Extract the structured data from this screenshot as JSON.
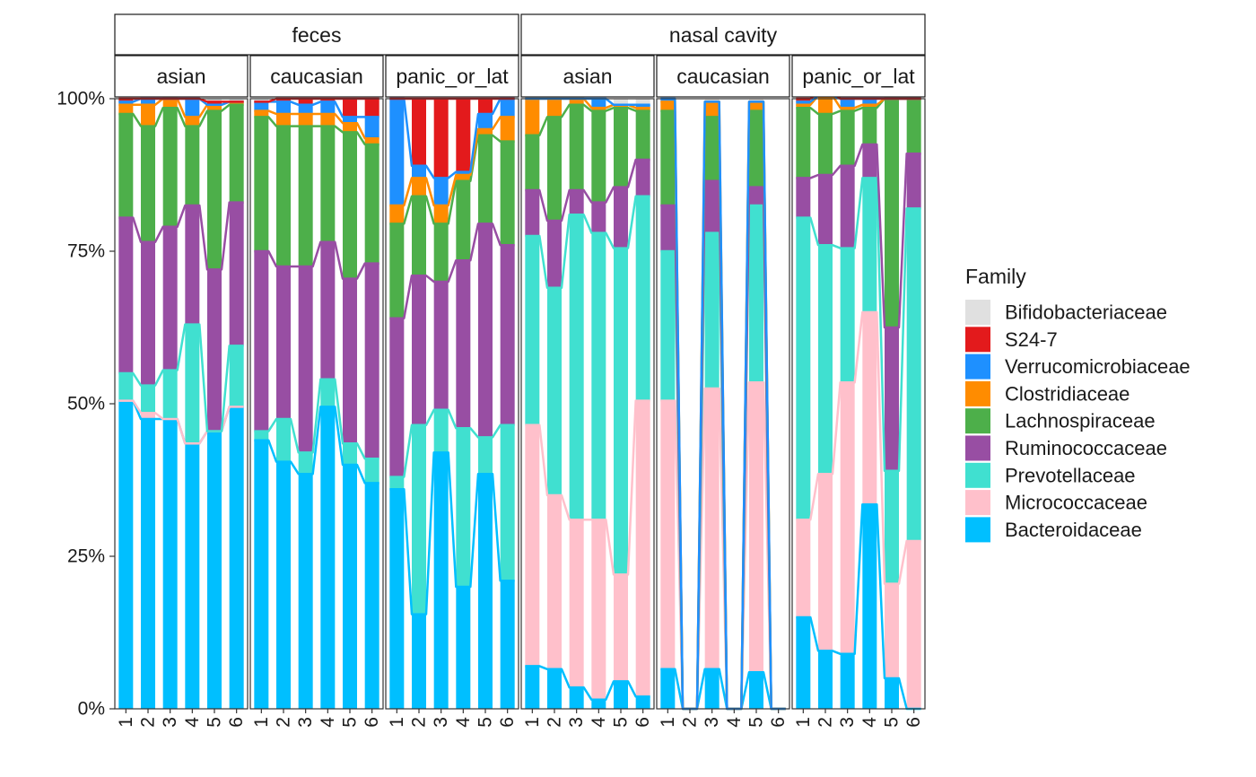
{
  "chart_data": {
    "type": "bar",
    "stacked": true,
    "percent": true,
    "facet_rows": [
      "feces",
      "nasal cavity"
    ],
    "facet_cols": [
      "asian",
      "caucasian",
      "panic_or_lat"
    ],
    "categories": [
      "1",
      "2",
      "3",
      "4",
      "5",
      "6"
    ],
    "y_ticks": [
      "0%",
      "25%",
      "50%",
      "75%",
      "100%"
    ],
    "ylim": [
      0,
      1
    ],
    "grid": false,
    "xlabel": "",
    "ylabel": "",
    "legend": {
      "title": "Family",
      "position": "right",
      "entries": [
        {
          "name": "Bifidobacteriaceae",
          "color": "#e0e0e0"
        },
        {
          "name": "S24-7",
          "color": "#e31a1c"
        },
        {
          "name": "Verrucomicrobiaceae",
          "color": "#1e90ff"
        },
        {
          "name": "Clostridiaceae",
          "color": "#ff8c00"
        },
        {
          "name": "Lachnospiraceae",
          "color": "#4daf4a"
        },
        {
          "name": "Ruminococcaceae",
          "color": "#984ea3"
        },
        {
          "name": "Prevotellaceae",
          "color": "#40e0d0"
        },
        {
          "name": "Micrococcaceae",
          "color": "#ffc0cb"
        },
        {
          "name": "Bacteroidaceae",
          "color": "#00bfff"
        }
      ]
    },
    "stack_order_bottom_to_top": [
      "Bacteroidaceae",
      "Micrococcaceae",
      "Prevotellaceae",
      "Ruminococcaceae",
      "Lachnospiraceae",
      "Clostridiaceae",
      "Verrucomicrobiaceae",
      "S24-7",
      "Bifidobacteriaceae"
    ],
    "panels": [
      {
        "row": "feces",
        "col": "asian",
        "values": {
          "Bacteroidaceae": [
            0.505,
            0.475,
            0.475,
            0.435,
            0.455,
            0.495
          ],
          "Micrococcaceae": [
            0,
            0.01,
            0,
            0,
            0,
            0
          ],
          "Prevotellaceae": [
            0.045,
            0.045,
            0.08,
            0.195,
            0,
            0.1
          ],
          "Ruminococcaceae": [
            0.255,
            0.235,
            0.235,
            0.195,
            0.265,
            0.235
          ],
          "Lachnospiraceae": [
            0.17,
            0.19,
            0.195,
            0.13,
            0.26,
            0.16
          ],
          "Clostridiaceae": [
            0.015,
            0.035,
            0.015,
            0.015,
            0.01,
            0.005
          ],
          "Verrucomicrobiaceae": [
            0.005,
            0.01,
            0,
            0.03,
            0,
            0
          ],
          "S24-7": [
            0.005,
            0,
            0,
            0,
            0.005,
            0
          ],
          "Bifidobacteriaceae": [
            0,
            0,
            0,
            0,
            0.005,
            0.005
          ]
        }
      },
      {
        "row": "feces",
        "col": "caucasian",
        "values": {
          "Bacteroidaceae": [
            0.44,
            0.405,
            0.385,
            0.495,
            0.4,
            0.37
          ],
          "Micrococcaceae": [
            0,
            0,
            0,
            0,
            0,
            0
          ],
          "Prevotellaceae": [
            0.015,
            0.07,
            0.035,
            0.045,
            0.035,
            0.04
          ],
          "Ruminococcaceae": [
            0.295,
            0.25,
            0.305,
            0.225,
            0.27,
            0.32
          ],
          "Lachnospiraceae": [
            0.22,
            0.23,
            0.23,
            0.19,
            0.24,
            0.195
          ],
          "Clostridiaceae": [
            0.01,
            0.02,
            0.02,
            0.02,
            0.015,
            0.01
          ],
          "Verrucomicrobiaceae": [
            0.015,
            0.02,
            0.015,
            0.02,
            0.01,
            0.035
          ],
          "S24-7": [
            0,
            0.005,
            0.01,
            0.005,
            0.03,
            0.03
          ],
          "Bifidobacteriaceae": [
            0.005,
            0,
            0,
            0,
            0,
            0
          ]
        }
      },
      {
        "row": "feces",
        "col": "panic_or_lat",
        "values": {
          "Bacteroidaceae": [
            0.36,
            0.155,
            0.42,
            0.2,
            0.385,
            0.21
          ],
          "Micrococcaceae": [
            0,
            0,
            0,
            0,
            0,
            0
          ],
          "Prevotellaceae": [
            0.02,
            0.31,
            0.07,
            0.26,
            0.06,
            0.255
          ],
          "Ruminococcaceae": [
            0.26,
            0.245,
            0.21,
            0.275,
            0.35,
            0.295
          ],
          "Lachnospiraceae": [
            0.155,
            0.13,
            0.095,
            0.13,
            0.145,
            0.17
          ],
          "Clostridiaceae": [
            0.03,
            0.03,
            0.03,
            0.01,
            0.01,
            0.04
          ],
          "Verrucomicrobiaceae": [
            0.175,
            0.02,
            0.045,
            0.005,
            0.025,
            0.03
          ],
          "S24-7": [
            0,
            0.11,
            0.13,
            0.12,
            0.025,
            0
          ],
          "Bifidobacteriaceae": [
            0,
            0,
            0,
            0,
            0,
            0
          ]
        }
      },
      {
        "row": "nasal cavity",
        "col": "asian",
        "values": {
          "Bacteroidaceae": [
            0.07,
            0.065,
            0.035,
            0.015,
            0.045,
            0.02
          ],
          "Micrococcaceae": [
            0.395,
            0.285,
            0.275,
            0.295,
            0.175,
            0.485
          ],
          "Prevotellaceae": [
            0.31,
            0.34,
            0.5,
            0.47,
            0.535,
            0.335
          ],
          "Ruminococcaceae": [
            0.075,
            0.11,
            0.04,
            0.05,
            0.1,
            0.06
          ],
          "Lachnospiraceae": [
            0.09,
            0.17,
            0.14,
            0.15,
            0.13,
            0.08
          ],
          "Clostridiaceae": [
            0.06,
            0.03,
            0.01,
            0.005,
            0.005,
            0.005
          ],
          "Verrucomicrobiaceae": [
            0,
            0,
            0,
            0.015,
            0,
            0.005
          ],
          "S24-7": [
            0,
            0,
            0,
            0,
            0,
            0
          ],
          "Bifidobacteriaceae": [
            0,
            0,
            0,
            0,
            0.01,
            0.01
          ]
        }
      },
      {
        "row": "nasal cavity",
        "col": "caucasian",
        "values": {
          "Bacteroidaceae": [
            0.065,
            0,
            0.065,
            0,
            0.06,
            0
          ],
          "Micrococcaceae": [
            0.44,
            0,
            0.46,
            0,
            0.475,
            0
          ],
          "Prevotellaceae": [
            0.245,
            0,
            0.255,
            0,
            0.29,
            0
          ],
          "Ruminococcaceae": [
            0.075,
            0,
            0.085,
            0,
            0.03,
            0
          ],
          "Lachnospiraceae": [
            0.155,
            0,
            0.105,
            0,
            0.125,
            0
          ],
          "Clostridiaceae": [
            0.015,
            0,
            0.025,
            0,
            0.015,
            0
          ],
          "Verrucomicrobiaceae": [
            0.005,
            0,
            0,
            0,
            0,
            0
          ],
          "S24-7": [
            0,
            0,
            0,
            0,
            0,
            0
          ],
          "Bifidobacteriaceae": [
            0,
            0,
            0.005,
            0,
            0.005,
            0
          ]
        }
      },
      {
        "row": "nasal cavity",
        "col": "panic_or_lat",
        "values": {
          "Bacteroidaceae": [
            0.15,
            0.095,
            0.09,
            0.335,
            0.05,
            0
          ],
          "Micrococcaceae": [
            0.16,
            0.29,
            0.445,
            0.315,
            0.155,
            0.275
          ],
          "Prevotellaceae": [
            0.495,
            0.375,
            0.22,
            0.22,
            0.185,
            0.545
          ],
          "Ruminococcaceae": [
            0.065,
            0.115,
            0.135,
            0.055,
            0.235,
            0.09
          ],
          "Lachnospiraceae": [
            0.115,
            0.1,
            0.09,
            0.06,
            0.375,
            0.09
          ],
          "Clostridiaceae": [
            0.005,
            0.03,
            0.005,
            0.005,
            0,
            0
          ],
          "Verrucomicrobiaceae": [
            0.005,
            0,
            0.015,
            0.01,
            0,
            0
          ],
          "S24-7": [
            0.005,
            0.005,
            0,
            0,
            0,
            0
          ],
          "Bifidobacteriaceae": [
            0,
            0,
            0,
            0,
            0,
            0
          ]
        }
      }
    ]
  }
}
